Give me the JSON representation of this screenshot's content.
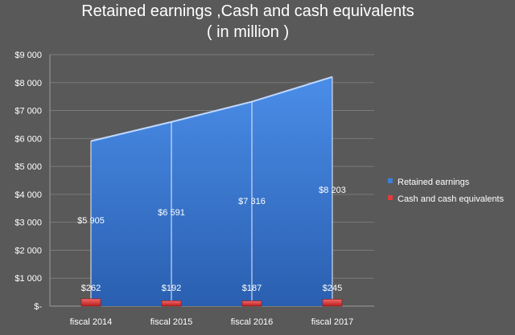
{
  "chart_data": {
    "type": "area",
    "title": "Retained earnings ,Cash and cash equivalents",
    "subtitle": "( in million )",
    "categories": [
      "fiscal 2014",
      "fiscal 2015",
      "fiscal 2016",
      "fiscal 2017"
    ],
    "y_ticks": [
      "$-",
      "$1 000",
      "$2 000",
      "$3 000",
      "$4 000",
      "$5 000",
      "$6 000",
      "$7 000",
      "$8 000",
      "$9 000"
    ],
    "ylim": [
      0,
      9000
    ],
    "grid": true,
    "legend_position": "right",
    "series": [
      {
        "name": "Retained earnings",
        "type": "area",
        "color": "#3E7FD6",
        "values": [
          5905,
          6591,
          7316,
          8203
        ],
        "labels": [
          "$5 905",
          "$6 591",
          "$7 316",
          "$8 203"
        ]
      },
      {
        "name": "Cash and cash equivalents",
        "type": "bar",
        "color": "#E03C3C",
        "values": [
          262,
          192,
          187,
          245
        ],
        "labels": [
          "$262",
          "$192",
          "$187",
          "$245"
        ]
      }
    ]
  }
}
